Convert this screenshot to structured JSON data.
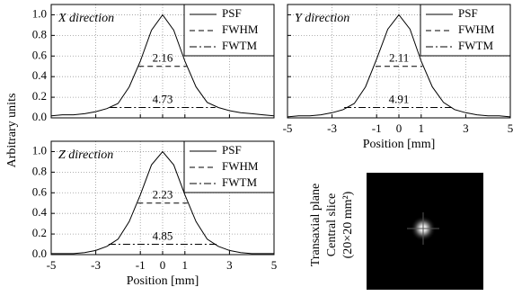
{
  "ylabel": "Arbitrary units",
  "image": {
    "caption": [
      "Transaxial plane",
      "Central slice",
      "(20×20 mm²)"
    ]
  },
  "chart_data": [
    {
      "type": "line",
      "title": "X direction",
      "legend": "upper right",
      "grid": true,
      "show_xticklabels": false,
      "show_yticklabels": true,
      "xlim": [
        -5,
        5
      ],
      "ylim": [
        0,
        1.1
      ],
      "xticks": [
        -5,
        -3,
        -1,
        0,
        1,
        3,
        5
      ],
      "yticks": [
        {
          "value": 0,
          "label": "0.0"
        },
        {
          "value": 0.2,
          "label": "0.2"
        },
        {
          "value": 0.4,
          "label": "0.4"
        },
        {
          "value": 0.6,
          "label": "0.6"
        },
        {
          "value": 0.8,
          "label": "0.8"
        },
        {
          "value": 1.0,
          "label": "1.0"
        }
      ],
      "series": [
        {
          "name": "PSF",
          "color": "#000000",
          "dash": "solid",
          "x": [
            -5,
            -4.5,
            -4,
            -3.5,
            -3,
            -2.5,
            -2,
            -1.5,
            -1,
            -0.5,
            0,
            0.5,
            1,
            1.5,
            2,
            2.5,
            3,
            3.5,
            4,
            4.5,
            5
          ],
          "values": [
            0.02,
            0.03,
            0.03,
            0.04,
            0.06,
            0.09,
            0.14,
            0.3,
            0.55,
            0.85,
            1.0,
            0.85,
            0.55,
            0.3,
            0.15,
            0.1,
            0.07,
            0.05,
            0.04,
            0.03,
            0.02
          ]
        },
        {
          "name": "FWHM",
          "color": "#000000",
          "dash": "dashed",
          "width": 2.16,
          "x": [
            -1.08,
            1.08
          ],
          "values": [
            0.5,
            0.5
          ]
        },
        {
          "name": "FWTM",
          "color": "#000000",
          "dash": "dashdot",
          "width": 4.73,
          "x": [
            -2.365,
            2.365
          ],
          "values": [
            0.1,
            0.1
          ]
        }
      ]
    },
    {
      "type": "line",
      "title": "Y direction",
      "legend": "upper right",
      "grid": true,
      "show_xticklabels": true,
      "show_yticklabels": false,
      "xlabel": "Position [mm]",
      "xlim": [
        -5,
        5
      ],
      "ylim": [
        0,
        1.1
      ],
      "xticks": [
        -5,
        -3,
        -1,
        0,
        1,
        3,
        5
      ],
      "yticks": [
        {
          "value": 0,
          "label": "0.0"
        },
        {
          "value": 0.2,
          "label": "0.2"
        },
        {
          "value": 0.4,
          "label": "0.4"
        },
        {
          "value": 0.6,
          "label": "0.6"
        },
        {
          "value": 0.8,
          "label": "0.8"
        },
        {
          "value": 1.0,
          "label": "1.0"
        }
      ],
      "series": [
        {
          "name": "PSF",
          "color": "#000000",
          "dash": "solid",
          "x": [
            -5,
            -4.5,
            -4,
            -3.5,
            -3,
            -2.5,
            -2,
            -1.5,
            -1,
            -0.5,
            0,
            0.5,
            1,
            1.5,
            2,
            2.5,
            3,
            3.5,
            4,
            4.5,
            5
          ],
          "values": [
            0.01,
            0.02,
            0.02,
            0.03,
            0.05,
            0.08,
            0.14,
            0.3,
            0.57,
            0.86,
            1.0,
            0.86,
            0.55,
            0.3,
            0.15,
            0.08,
            0.05,
            0.03,
            0.02,
            0.02,
            0.01
          ]
        },
        {
          "name": "FWHM",
          "color": "#000000",
          "dash": "dashed",
          "width": 2.11,
          "x": [
            -1.05,
            1.06
          ],
          "values": [
            0.5,
            0.5
          ]
        },
        {
          "name": "FWTM",
          "color": "#000000",
          "dash": "dashdot",
          "width": 4.91,
          "x": [
            -2.455,
            2.455
          ],
          "values": [
            0.1,
            0.1
          ]
        }
      ]
    },
    {
      "type": "line",
      "title": "Z direction",
      "legend": "upper right",
      "grid": true,
      "show_xticklabels": true,
      "show_yticklabels": true,
      "xlabel": "Position [mm]",
      "xlim": [
        -5,
        5
      ],
      "ylim": [
        0,
        1.1
      ],
      "xticks": [
        -5,
        -3,
        -1,
        0,
        1,
        3,
        5
      ],
      "yticks": [
        {
          "value": 0,
          "label": "0.0"
        },
        {
          "value": 0.2,
          "label": "0.2"
        },
        {
          "value": 0.4,
          "label": "0.4"
        },
        {
          "value": 0.6,
          "label": "0.6"
        },
        {
          "value": 0.8,
          "label": "0.8"
        },
        {
          "value": 1.0,
          "label": "1.0"
        }
      ],
      "series": [
        {
          "name": "PSF",
          "color": "#000000",
          "dash": "solid",
          "x": [
            -5,
            -4.5,
            -4,
            -3.5,
            -3,
            -2.5,
            -2,
            -1.5,
            -1,
            -0.5,
            0,
            0.5,
            1,
            1.5,
            2,
            2.5,
            3,
            3.5,
            4,
            4.5,
            5
          ],
          "values": [
            0.01,
            0.01,
            0.01,
            0.02,
            0.04,
            0.08,
            0.15,
            0.32,
            0.58,
            0.87,
            1.0,
            0.87,
            0.58,
            0.32,
            0.15,
            0.08,
            0.04,
            0.02,
            0.01,
            0.01,
            0.01
          ]
        },
        {
          "name": "FWHM",
          "color": "#000000",
          "dash": "dashed",
          "width": 2.23,
          "x": [
            -1.115,
            1.115
          ],
          "values": [
            0.5,
            0.5
          ]
        },
        {
          "name": "FWTM",
          "color": "#000000",
          "dash": "dashdot",
          "width": 4.85,
          "x": [
            -2.425,
            2.425
          ],
          "values": [
            0.1,
            0.1
          ]
        }
      ]
    }
  ]
}
